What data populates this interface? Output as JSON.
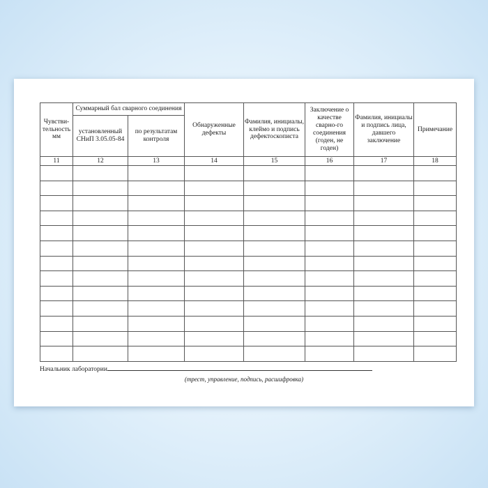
{
  "headers": {
    "c11": "Чувстви-тельность мм",
    "group": "Суммарный бал сварного соединения",
    "c12": "установленный СНиП 3.05.05-84",
    "c13": "по результатам контроля",
    "c14": "Обнаруженные дефекты",
    "c15": "Фамилия, инициалы, клеймо и подпись дефектоскописта",
    "c16": "Заключение о качестве сварно-го соединения (годен, не годен)",
    "c17": "Фамилия, инициалы и подпись лица, давшего заключение",
    "c18": "Примечание"
  },
  "column_numbers": [
    "11",
    "12",
    "13",
    "14",
    "15",
    "16",
    "17",
    "18"
  ],
  "empty_rows": 13,
  "signature": {
    "label": "Начальник лаборатории",
    "hint": "(трест, управление, подпись, расшифровка)"
  }
}
